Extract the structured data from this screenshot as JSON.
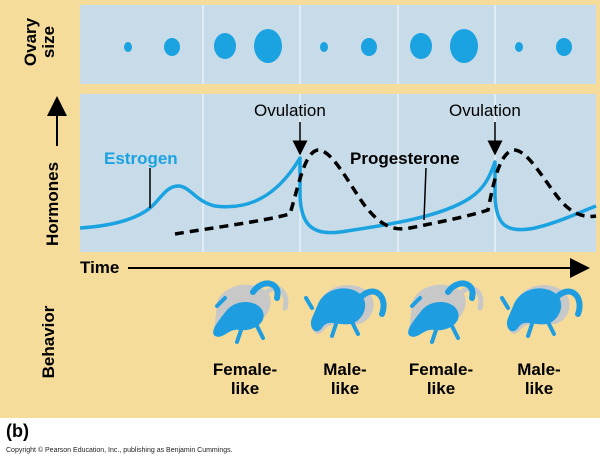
{
  "panel_letter": "(b)",
  "copyright": "Copyright © Pearson Education, Inc., publishing as Benjamin Cummings.",
  "y_labels": {
    "ovary_line1": "Ovary",
    "ovary_line2": "size",
    "hormones": "Hormones",
    "behavior": "Behavior"
  },
  "time_label": "Time",
  "hormone_labels": {
    "estrogen": "Estrogen",
    "progesterone": "Progesterone",
    "ovulation_1": "Ovulation",
    "ovulation_2": "Ovulation"
  },
  "behaviors": [
    {
      "label": "Female-\nlike"
    },
    {
      "label": "Male-\nlike"
    },
    {
      "label": "Female-\nlike"
    },
    {
      "label": "Male-\nlike"
    }
  ],
  "colors": {
    "background": "#f6dc9b",
    "box": "#c7dbe8",
    "estrogen": "#1aa3e0",
    "progesterone": "#000000",
    "lizard_blue": "#1e9ee0",
    "lizard_gray": "#c8c8c8"
  }
}
